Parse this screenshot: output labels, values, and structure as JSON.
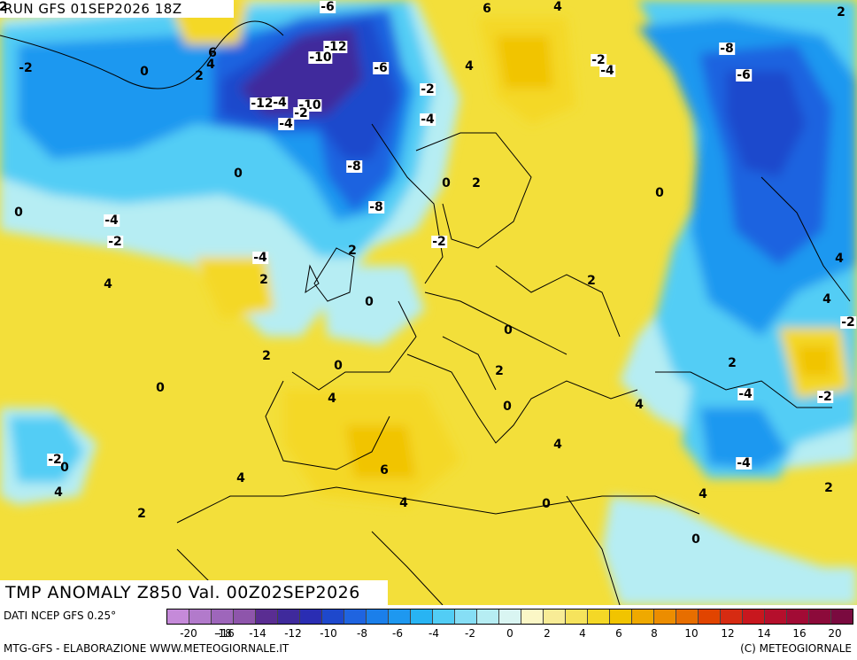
{
  "header": {
    "run_title": "RUN GFS 01SEP2026 18Z",
    "field_title": "TMP ANOMALY Z850 Val. 00Z02SEP2026"
  },
  "footer": {
    "source": "DATI NCEP GFS 0.25°",
    "credits": "MTG-GFS - ELABORAZIONE WWW.METEOGIORNALE.IT",
    "copyright": "(C) METEOGIORNALE"
  },
  "colorbar": {
    "ticks": [
      "-20",
      "-18",
      "-16",
      "-14",
      "-12",
      "-10",
      "-8",
      "-6",
      "-4",
      "-2",
      "0",
      "2",
      "4",
      "6",
      "8",
      "10",
      "12",
      "14",
      "16",
      "20"
    ],
    "colors": [
      "#c58ad9",
      "#b27acb",
      "#9e66bb",
      "#8e55ab",
      "#5a2d92",
      "#3f2a9c",
      "#2a2db3",
      "#1e48cc",
      "#1f64e0",
      "#1b7fea",
      "#1e98f0",
      "#28b4f3",
      "#52cdf5",
      "#86def5",
      "#b6edf3",
      "#d9f5f2",
      "#fbf7c6",
      "#f8ec96",
      "#f6e35c",
      "#f4d826",
      "#f1c400",
      "#efa900",
      "#ec8d00",
      "#e76e00",
      "#e14400",
      "#d62b12",
      "#c8171e",
      "#b50f2c",
      "#a20b35",
      "#8c0a3a",
      "#7a0a3f"
    ],
    "map_fill": {
      "anom_neg_12": "#3f2a9c",
      "anom_neg_8": "#1e48cc",
      "anom_neg_6": "#1f64e0",
      "anom_neg_4": "#1b98f0",
      "anom_neg_2": "#52cdf5",
      "anom_0": "#b6edf3",
      "anom_pos_2": "#f6e35c",
      "anom_pos_4": "#f4d826",
      "anom_pos_6": "#f1c400"
    }
  },
  "contour_labels": [
    {
      "text": "-6",
      "boxed": true
    },
    {
      "text": "6",
      "boxed": false
    },
    {
      "text": "4",
      "boxed": false
    },
    {
      "text": "2",
      "boxed": false
    },
    {
      "text": "6",
      "boxed": false
    },
    {
      "text": "4",
      "boxed": false
    },
    {
      "text": "-2",
      "boxed": false
    },
    {
      "text": "0",
      "boxed": false
    },
    {
      "text": "2",
      "boxed": false
    },
    {
      "text": "-12",
      "boxed": true
    },
    {
      "text": "-10",
      "boxed": true
    },
    {
      "text": "-6",
      "boxed": true
    },
    {
      "text": "4",
      "boxed": false
    },
    {
      "text": "-2",
      "boxed": true
    },
    {
      "text": "-4",
      "boxed": true
    },
    {
      "text": "-8",
      "boxed": true
    },
    {
      "text": "-12",
      "boxed": true
    },
    {
      "text": "-4",
      "boxed": true
    },
    {
      "text": "-10",
      "boxed": true
    },
    {
      "text": "-2",
      "boxed": true
    },
    {
      "text": "-4",
      "boxed": true
    },
    {
      "text": "-2",
      "boxed": true
    },
    {
      "text": "-4",
      "boxed": true
    },
    {
      "text": "-6",
      "boxed": true
    },
    {
      "text": "-8",
      "boxed": true
    },
    {
      "text": "-8",
      "boxed": true
    },
    {
      "text": "0",
      "boxed": false
    },
    {
      "text": "0",
      "boxed": false
    },
    {
      "text": "2",
      "boxed": false
    },
    {
      "text": "0",
      "boxed": false
    },
    {
      "text": "0",
      "boxed": false
    },
    {
      "text": "-4",
      "boxed": true
    },
    {
      "text": "-2",
      "boxed": true
    },
    {
      "text": "-2",
      "boxed": true
    },
    {
      "text": "2",
      "boxed": false
    },
    {
      "text": "-4",
      "boxed": true
    },
    {
      "text": "2",
      "boxed": false
    },
    {
      "text": "4",
      "boxed": false
    },
    {
      "text": "2",
      "boxed": false
    },
    {
      "text": "4",
      "boxed": false
    },
    {
      "text": "4",
      "boxed": false
    },
    {
      "text": "0",
      "boxed": false
    },
    {
      "text": "-2",
      "boxed": true
    },
    {
      "text": "0",
      "boxed": false
    },
    {
      "text": "0",
      "boxed": false
    },
    {
      "text": "2",
      "boxed": false
    },
    {
      "text": "2",
      "boxed": false
    },
    {
      "text": "0",
      "boxed": false
    },
    {
      "text": "2",
      "boxed": false
    },
    {
      "text": "4",
      "boxed": false
    },
    {
      "text": "-4",
      "boxed": true
    },
    {
      "text": "-2",
      "boxed": true
    },
    {
      "text": "4",
      "boxed": false
    },
    {
      "text": "0",
      "boxed": false
    },
    {
      "text": "4",
      "boxed": false
    },
    {
      "text": "-2",
      "boxed": true
    },
    {
      "text": "0",
      "boxed": false
    },
    {
      "text": "4",
      "boxed": false
    },
    {
      "text": "-4",
      "boxed": true
    },
    {
      "text": "4",
      "boxed": false
    },
    {
      "text": "6",
      "boxed": false
    },
    {
      "text": "4",
      "boxed": false
    },
    {
      "text": "2",
      "boxed": false
    },
    {
      "text": "0",
      "boxed": false
    },
    {
      "text": "4",
      "boxed": false
    },
    {
      "text": "2",
      "boxed": false
    },
    {
      "text": "0",
      "boxed": false
    },
    {
      "text": "-2",
      "boxed": false
    }
  ]
}
